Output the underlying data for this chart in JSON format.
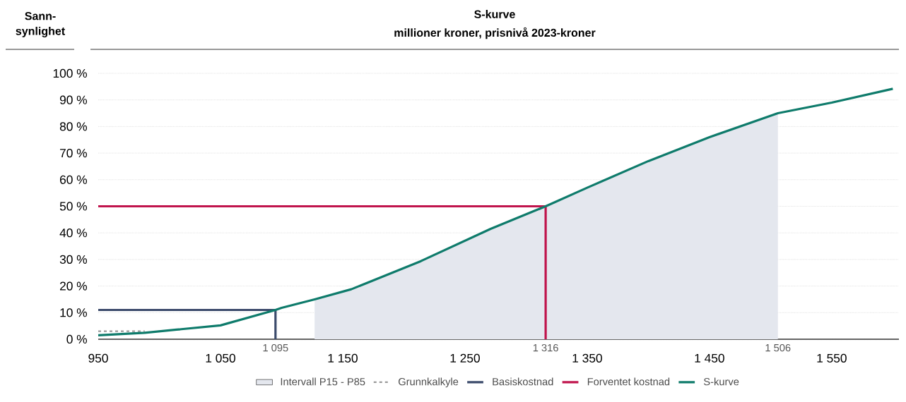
{
  "chart_data": {
    "type": "line",
    "title": "S-kurve",
    "subtitle": "millioner kroner, prisnivå 2023-kroner",
    "ylabel": "Sann-synlighet",
    "series": [
      {
        "name": "Intervall P15 - P85",
        "type": "area",
        "color": "#e4e7ee",
        "x": [
          1127,
          1157,
          1214,
          1271,
          1316,
          1350,
          1400,
          1450,
          1506
        ],
        "values": [
          15,
          18.8,
          29.4,
          41.5,
          50,
          57,
          67,
          76,
          85
        ]
      },
      {
        "name": "Grunnkalkyle",
        "type": "line",
        "line_style": "dashed",
        "color": "#9a9a9a",
        "x": [
          950,
          988
        ],
        "values": [
          3,
          3
        ]
      },
      {
        "name": "Basiskostnad",
        "type": "line",
        "color": "#3b4a6b",
        "x": [
          950,
          1095,
          1095
        ],
        "values": [
          11,
          11,
          0
        ]
      },
      {
        "name": "Forventet kostnad",
        "type": "line",
        "color": "#c0144c",
        "x": [
          950,
          1316,
          1316
        ],
        "values": [
          50,
          50,
          0
        ]
      },
      {
        "name": "S-kurve",
        "type": "line",
        "color": "#0e7b6b",
        "x": [
          950,
          988,
          1014,
          1050,
          1095,
          1100,
          1127,
          1157,
          1214,
          1271,
          1316,
          1350,
          1400,
          1450,
          1506,
          1550,
          1600
        ],
        "values": [
          1.5,
          2.4,
          3.6,
          5.2,
          11,
          11.8,
          15,
          18.8,
          29.4,
          41.5,
          50,
          57,
          67,
          76,
          85,
          89,
          94.2
        ]
      }
    ],
    "xlim": [
      950,
      1605
    ],
    "ylim": [
      0,
      100
    ],
    "xticks": [
      950,
      {
        "value": 1050,
        "label": "1 050"
      },
      {
        "value": 1150,
        "label": "1 150"
      },
      {
        "value": 1250,
        "label": "1 250"
      },
      {
        "value": 1350,
        "label": "1 350"
      },
      {
        "value": 1450,
        "label": "1 450"
      },
      {
        "value": 1550,
        "label": "1 550"
      }
    ],
    "yticks": [
      {
        "value": 0,
        "label": "0 %"
      },
      {
        "value": 10,
        "label": "10 %"
      },
      {
        "value": 20,
        "label": "20 %"
      },
      {
        "value": 30,
        "label": "30 %"
      },
      {
        "value": 40,
        "label": "40 %"
      },
      {
        "value": 50,
        "label": "50 %"
      },
      {
        "value": 60,
        "label": "60 %"
      },
      {
        "value": 70,
        "label": "70 %"
      },
      {
        "value": 80,
        "label": "80 %"
      },
      {
        "value": 90,
        "label": "90 %"
      },
      {
        "value": 100,
        "label": "100 %"
      }
    ],
    "annotations": [
      {
        "text": "1 095",
        "x": 1095,
        "y": 0
      },
      {
        "text": "1 316",
        "x": 1316,
        "y": 0
      },
      {
        "text": "1 506",
        "x": 1506,
        "y": 0
      }
    ],
    "grid": "y",
    "legend": "bottom",
    "marker": "none"
  }
}
